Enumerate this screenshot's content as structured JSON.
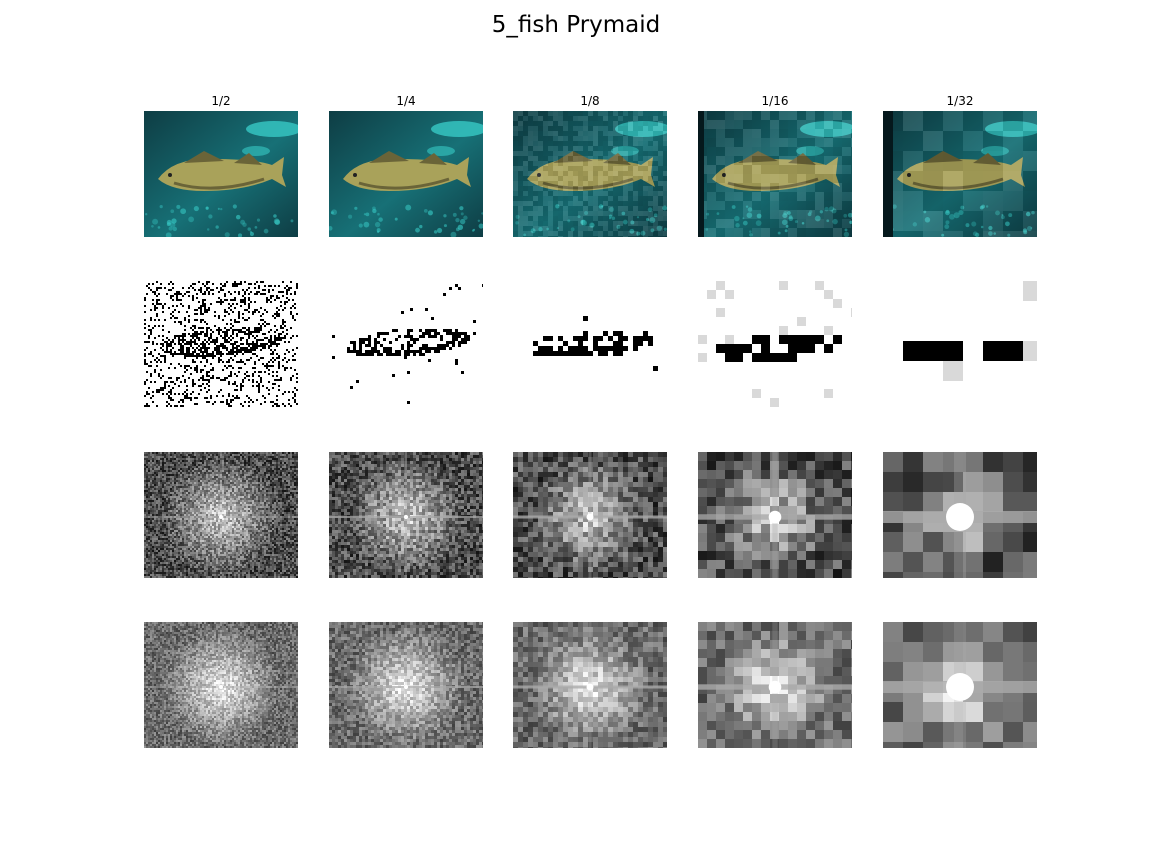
{
  "figure": {
    "title": "5_fish Prymaid",
    "columns": [
      "1/2",
      "1/4",
      "1/8",
      "1/16",
      "1/32"
    ],
    "rows": [
      "image",
      "edge",
      "spectrum",
      "spectrum"
    ],
    "colors": {
      "water_dark": "#0e3d44",
      "water_mid": "#177076",
      "water_light": "#37c9c5",
      "fish_body": "#a9a25a",
      "fish_shadow": "#6a6438"
    }
  }
}
